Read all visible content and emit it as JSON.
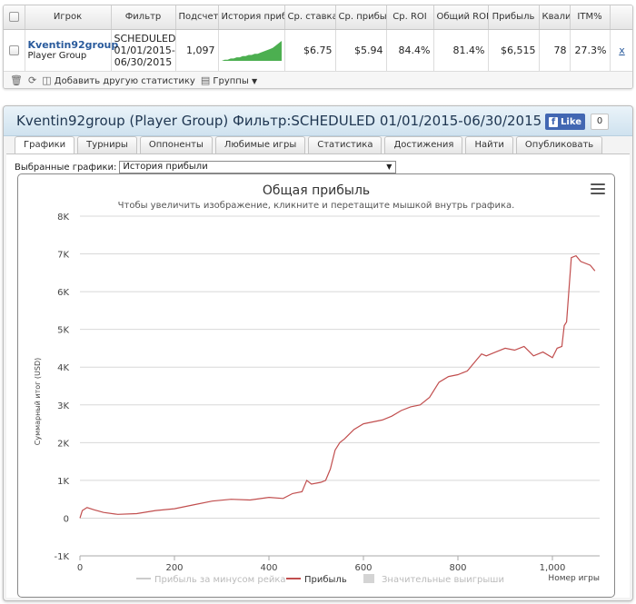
{
  "stats_table": {
    "headers": [
      "Игрок",
      "Фильтр",
      "Подсчет",
      "История прибыли",
      "Ср. ставка",
      "Ср. прибы",
      "Ср. ROI",
      "Общий ROI",
      "Прибыль",
      "Квалиф",
      "ITM%"
    ],
    "row": {
      "player_name": "Kventin92group",
      "player_type": "Player Group",
      "filter_line1": "SCHEDULED",
      "filter_line2": "01/01/2015-",
      "filter_line3": "06/30/2015",
      "count": "1,097",
      "avg_stake": "$6.75",
      "avg_profit": "$5.94",
      "avg_roi": "84.4%",
      "total_roi": "81.4%",
      "profit": "$6,515",
      "qualif": "78",
      "itm": "27.3%",
      "remove": "x"
    }
  },
  "toolbar": {
    "add_stat": "Добавить другую статистику",
    "groups": "Группы"
  },
  "panel": {
    "title": "Kventin92group (Player Group) Фильтр:SCHEDULED 01/01/2015-06/30/2015",
    "like_label": "Like",
    "like_count": "0"
  },
  "tabs": [
    "Графики",
    "Турниры",
    "Оппоненты",
    "Любимые игры",
    "Статистика",
    "Достижения",
    "Найти",
    "Опубликовать"
  ],
  "graph_select": {
    "label": "Выбранные графики:",
    "value": "История прибыли"
  },
  "colors": {
    "profit_line": "#c14e4e",
    "sparkline": "#4caf50",
    "title": "#2a5b9c"
  },
  "chart_data": {
    "type": "line",
    "title": "Общая прибыль",
    "subtitle": "Чтобы увеличить изображение, кликните и перетащите мышкой внутрь графика.",
    "ylabel": "Суммарный итог (USD)",
    "xlabel": "Номер игры",
    "xlim": [
      0,
      1100
    ],
    "ylim": [
      -1000,
      8000
    ],
    "x_ticks": [
      "0",
      "200",
      "400",
      "600",
      "800",
      "1,000"
    ],
    "x_tick_values": [
      0,
      200,
      400,
      600,
      800,
      1000
    ],
    "y_ticks": [
      "-1K",
      "0",
      "1K",
      "2K",
      "3K",
      "4K",
      "5K",
      "6K",
      "7K",
      "8K"
    ],
    "y_tick_values": [
      -1000,
      0,
      1000,
      2000,
      3000,
      4000,
      5000,
      6000,
      7000,
      8000
    ],
    "grid": true,
    "legend": [
      {
        "name": "Прибыль за минусом рейка",
        "enabled": false
      },
      {
        "name": "Прибыль",
        "enabled": true
      },
      {
        "name": "Значительные выигрыши",
        "enabled": false
      }
    ],
    "series": [
      {
        "name": "Прибыль",
        "x": [
          0,
          5,
          15,
          30,
          50,
          80,
          120,
          160,
          200,
          240,
          280,
          320,
          360,
          400,
          430,
          450,
          470,
          480,
          490,
          510,
          520,
          530,
          540,
          550,
          560,
          580,
          600,
          620,
          640,
          660,
          680,
          700,
          720,
          740,
          760,
          780,
          800,
          820,
          840,
          850,
          860,
          880,
          900,
          920,
          940,
          960,
          980,
          1000,
          1010,
          1020,
          1025,
          1030,
          1040,
          1050,
          1060,
          1080,
          1090
        ],
        "y": [
          0,
          200,
          280,
          220,
          150,
          100,
          120,
          200,
          250,
          350,
          450,
          500,
          480,
          550,
          520,
          650,
          700,
          1000,
          900,
          950,
          1000,
          1300,
          1800,
          2000,
          2100,
          2350,
          2500,
          2550,
          2600,
          2700,
          2850,
          2950,
          3000,
          3200,
          3600,
          3750,
          3800,
          3900,
          4200,
          4350,
          4300,
          4400,
          4500,
          4450,
          4550,
          4300,
          4400,
          4250,
          4500,
          4550,
          5100,
          5200,
          6900,
          6950,
          6800,
          6700,
          6550
        ]
      }
    ]
  },
  "sparkline_data": [
    0,
    1,
    1,
    2,
    2,
    3,
    3,
    4,
    4,
    5,
    5,
    6,
    6,
    7,
    8,
    9,
    10,
    11,
    13,
    15,
    17
  ]
}
